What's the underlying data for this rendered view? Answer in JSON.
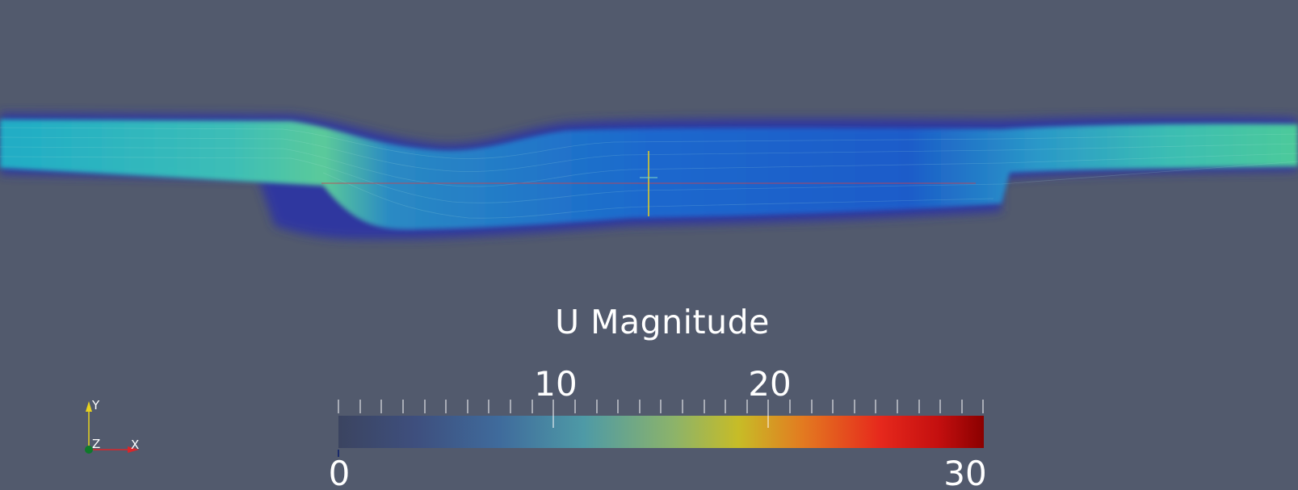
{
  "scene": {
    "background": "#525a6d",
    "field_name": "U Magnitude"
  },
  "colorbar": {
    "title": "U Magnitude",
    "range": [
      0,
      30
    ],
    "major_ticks": [
      "10",
      "20"
    ],
    "end_labels": [
      "0",
      "30"
    ],
    "colors": [
      "#3b4460",
      "#3e4f7e",
      "#3f6b9c",
      "#4e9aa6",
      "#8cb36a",
      "#c7bc27",
      "#e37a20",
      "#e6281c",
      "#c40f0f",
      "#8a0000"
    ]
  },
  "orientation_axes": {
    "y_label": "Y",
    "x_label": "X",
    "z_label": "Z",
    "y_color": "#e8d21e",
    "x_color": "#d9262a",
    "z_color": "#0f7a2a"
  }
}
